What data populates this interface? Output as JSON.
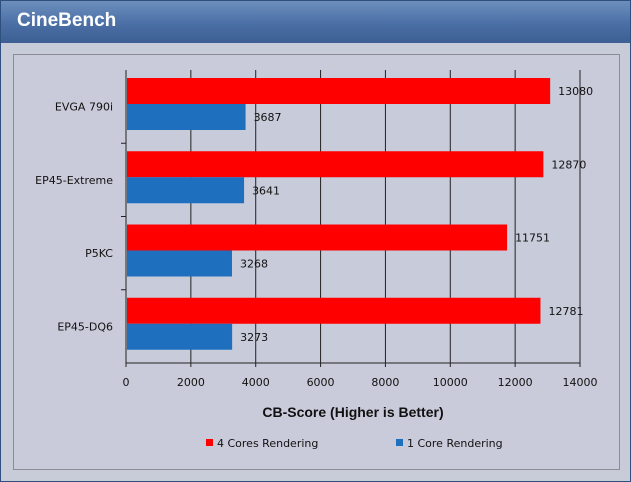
{
  "header": {
    "title": "CineBench"
  },
  "chart_data": {
    "type": "bar",
    "orientation": "horizontal",
    "categories": [
      "EVGA 790i",
      "EP45-Extreme",
      "P5KC",
      "EP45-DQ6"
    ],
    "series": [
      {
        "name": "4 Cores Rendering",
        "color": "#ff0000",
        "values": [
          13080,
          12870,
          11751,
          12781
        ]
      },
      {
        "name": "1 Core Rendering",
        "color": "#1f6fbf",
        "values": [
          3687,
          3641,
          3268,
          3273
        ]
      }
    ],
    "xticks": [
      "0",
      "2000",
      "4000",
      "6000",
      "8000",
      "10000",
      "12000",
      "14000"
    ],
    "xlim": [
      0,
      14000
    ],
    "xlabel": "CB-Score (Higher is Better)",
    "grid": "vertical",
    "legend": "bottom"
  }
}
